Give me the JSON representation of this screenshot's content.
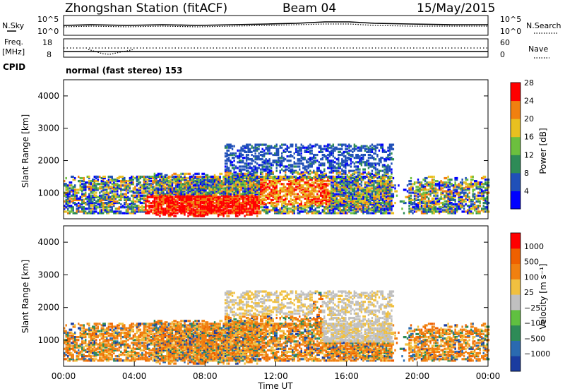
{
  "header": {
    "station": "Zhongshan Station (fitACF)",
    "beam": "Beam 04",
    "date": "15/May/2015"
  },
  "nsky_panel": {
    "left_label": "N.Sky",
    "left_ticks": [
      "10^5",
      "10^0"
    ],
    "right_label": "N.Search",
    "right_ticks": [
      "10^5",
      "10^0"
    ]
  },
  "freq_panel": {
    "left_label_top": "Freq.",
    "left_label_bottom": "[MHz]",
    "left_ticks": [
      "18",
      "8"
    ],
    "right_label": "Nave",
    "right_ticks": [
      "60",
      "0"
    ],
    "cpid_label": "CPID",
    "cpid_text": "normal (fast stereo) 153"
  },
  "chart_data": [
    {
      "type": "heatmap",
      "name": "power",
      "ylabel": "Slant Range [km]",
      "xlabel": "",
      "xlim": [
        0,
        24
      ],
      "ylim": [
        200,
        4500
      ],
      "yticks": [
        "1000",
        "2000",
        "3000",
        "4000"
      ],
      "colorbar": {
        "label": "Power [dB]",
        "ticks": [
          "4",
          "8",
          "12",
          "16",
          "20",
          "24",
          "28"
        ],
        "colors": [
          "#0000ff",
          "#2050b8",
          "#2e8b57",
          "#6cbf3e",
          "#e8c020",
          "#f08010",
          "#ff0000"
        ]
      }
    },
    {
      "type": "heatmap",
      "name": "velocity",
      "ylabel": "Slant Range [km]",
      "xlabel": "Time UT",
      "xlim": [
        0,
        24
      ],
      "ylim": [
        200,
        4500
      ],
      "xticks": [
        "00:00",
        "04:00",
        "08:00",
        "12:00",
        "16:00",
        "20:00",
        "00:00"
      ],
      "yticks": [
        "1000",
        "2000",
        "3000",
        "4000"
      ],
      "colorbar": {
        "label": "Velocity [m s⁻¹]",
        "ticks": [
          "1000",
          "500",
          "100",
          "25",
          "−25",
          "−100",
          "−500",
          "−1000"
        ],
        "colors": [
          "#1a3ca0",
          "#2a6ab0",
          "#2e8b57",
          "#60c040",
          "#c0c0c0",
          "#f0c040",
          "#f08010",
          "#ee6000",
          "#ff0000"
        ]
      }
    }
  ]
}
